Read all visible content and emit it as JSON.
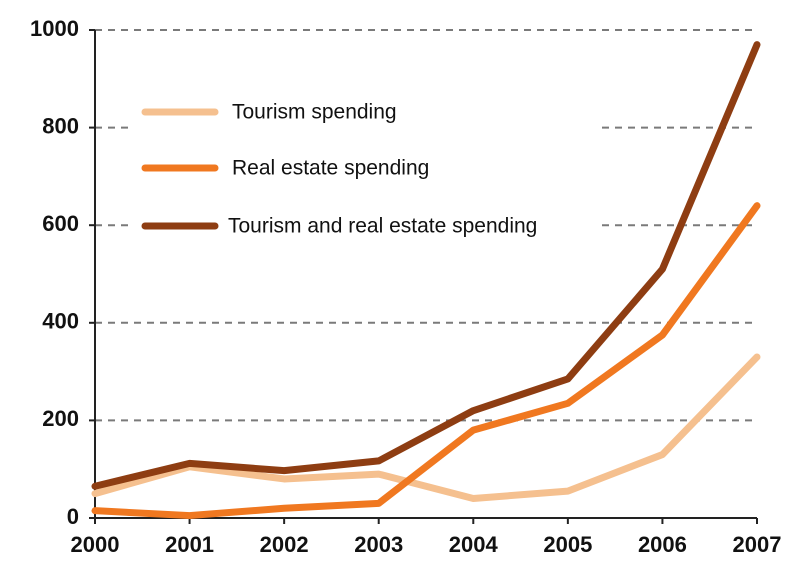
{
  "chart_data": {
    "type": "line",
    "title": "",
    "xlabel": "",
    "ylabel": "",
    "x": [
      "2000",
      "2001",
      "2002",
      "2003",
      "2004",
      "2005",
      "2006",
      "2007"
    ],
    "ylim": [
      0,
      1000
    ],
    "yticks": [
      0,
      200,
      400,
      600,
      800,
      1000
    ],
    "grid": "horizontal-dashed",
    "legend_position": "top-left",
    "series": [
      {
        "name": "Tourism spending",
        "color": "#f5c08f",
        "values": [
          50,
          105,
          80,
          90,
          40,
          55,
          130,
          330
        ]
      },
      {
        "name": "Real estate spending",
        "color": "#f07820",
        "values": [
          15,
          5,
          20,
          30,
          180,
          235,
          375,
          640
        ]
      },
      {
        "name": "Tourism and real estate spending",
        "color": "#8e3d12",
        "values": [
          65,
          112,
          97,
          117,
          220,
          285,
          510,
          970
        ]
      }
    ]
  }
}
